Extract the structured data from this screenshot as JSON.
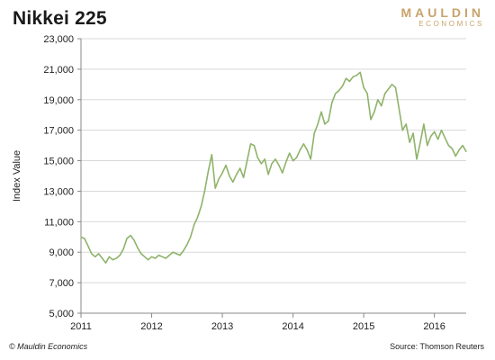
{
  "title": "Nikkei 225",
  "logo": {
    "top": "MAULDIN",
    "bottom": "ECONOMICS"
  },
  "footer": {
    "left": "© Mauldin Economics",
    "right": "Source: Thomson Reuters"
  },
  "colors": {
    "line": "#8fb36a",
    "grid": "#d9d9d9",
    "axis": "#888888",
    "logo": "#c9a36b"
  },
  "chart_data": {
    "type": "line",
    "title": "Nikkei 225",
    "xlabel": "",
    "ylabel": "Index Value",
    "ylim": [
      5000,
      23000
    ],
    "xlim": [
      2011.0,
      2016.45
    ],
    "grid": true,
    "yticks": [
      5000,
      7000,
      9000,
      11000,
      13000,
      15000,
      17000,
      19000,
      21000,
      23000
    ],
    "yticklabels": [
      "5,000",
      "7,000",
      "9,000",
      "11,000",
      "13,000",
      "15,000",
      "17,000",
      "19,000",
      "21,000",
      "23,000"
    ],
    "xticks": [
      2011,
      2012,
      2013,
      2014,
      2015,
      2016
    ],
    "xticklabels": [
      "2011",
      "2012",
      "2013",
      "2014",
      "2015",
      "2016"
    ],
    "series": [
      {
        "x": [
          2011.0,
          2011.05,
          2011.1,
          2011.15,
          2011.2,
          2011.25,
          2011.3,
          2011.35,
          2011.4,
          2011.45,
          2011.5,
          2011.55,
          2011.6,
          2011.65,
          2011.7,
          2011.75,
          2011.8,
          2011.85,
          2011.9,
          2011.95,
          2012.0,
          2012.05,
          2012.1,
          2012.15,
          2012.2,
          2012.25,
          2012.3,
          2012.35,
          2012.4,
          2012.45,
          2012.5,
          2012.55,
          2012.6,
          2012.65,
          2012.7,
          2012.75,
          2012.8,
          2012.85,
          2012.9,
          2012.95,
          2013.0,
          2013.05,
          2013.1,
          2013.15,
          2013.2,
          2013.25,
          2013.3,
          2013.35,
          2013.4,
          2013.45,
          2013.5,
          2013.55,
          2013.6,
          2013.65,
          2013.7,
          2013.75,
          2013.8,
          2013.85,
          2013.9,
          2013.95,
          2014.0,
          2014.05,
          2014.1,
          2014.15,
          2014.2,
          2014.25,
          2014.3,
          2014.35,
          2014.4,
          2014.45,
          2014.5,
          2014.55,
          2014.6,
          2014.65,
          2014.7,
          2014.75,
          2014.8,
          2014.85,
          2014.9,
          2014.95,
          2015.0,
          2015.05,
          2015.1,
          2015.15,
          2015.2,
          2015.25,
          2015.3,
          2015.35,
          2015.4,
          2015.45,
          2015.5,
          2015.55,
          2015.6,
          2015.65,
          2015.7,
          2015.75,
          2015.8,
          2015.85,
          2015.9,
          2015.95,
          2016.0,
          2016.05,
          2016.1,
          2016.15,
          2016.2,
          2016.25,
          2016.3,
          2016.35,
          2016.4,
          2016.45
        ],
        "values": [
          10000,
          9900,
          9400,
          8900,
          8700,
          8900,
          8600,
          8300,
          8700,
          8500,
          8600,
          8800,
          9200,
          9900,
          10100,
          9800,
          9300,
          8900,
          8700,
          8500,
          8700,
          8600,
          8800,
          8700,
          8600,
          8800,
          9000,
          8900,
          8800,
          9100,
          9500,
          10000,
          10800,
          11300,
          12000,
          13000,
          14300,
          15400,
          13200,
          13800,
          14200,
          14700,
          14000,
          13600,
          14100,
          14500,
          13900,
          15000,
          16100,
          16000,
          15200,
          14800,
          15100,
          14100,
          14800,
          15100,
          14700,
          14200,
          14900,
          15500,
          15000,
          15200,
          15700,
          16100,
          15700,
          15100,
          16800,
          17400,
          18200,
          17400,
          17600,
          18800,
          19400,
          19600,
          19900,
          20400,
          20200,
          20500,
          20600,
          20800,
          19800,
          19400,
          17700,
          18200,
          19000,
          18600,
          19400,
          19700,
          20000,
          19800,
          18400,
          17000,
          17400,
          16200,
          16800,
          15100,
          16200,
          17400,
          16000,
          16600,
          16900,
          16400,
          17000,
          16500,
          16000,
          15800,
          15300,
          15700,
          16000,
          15600
        ]
      }
    ]
  }
}
